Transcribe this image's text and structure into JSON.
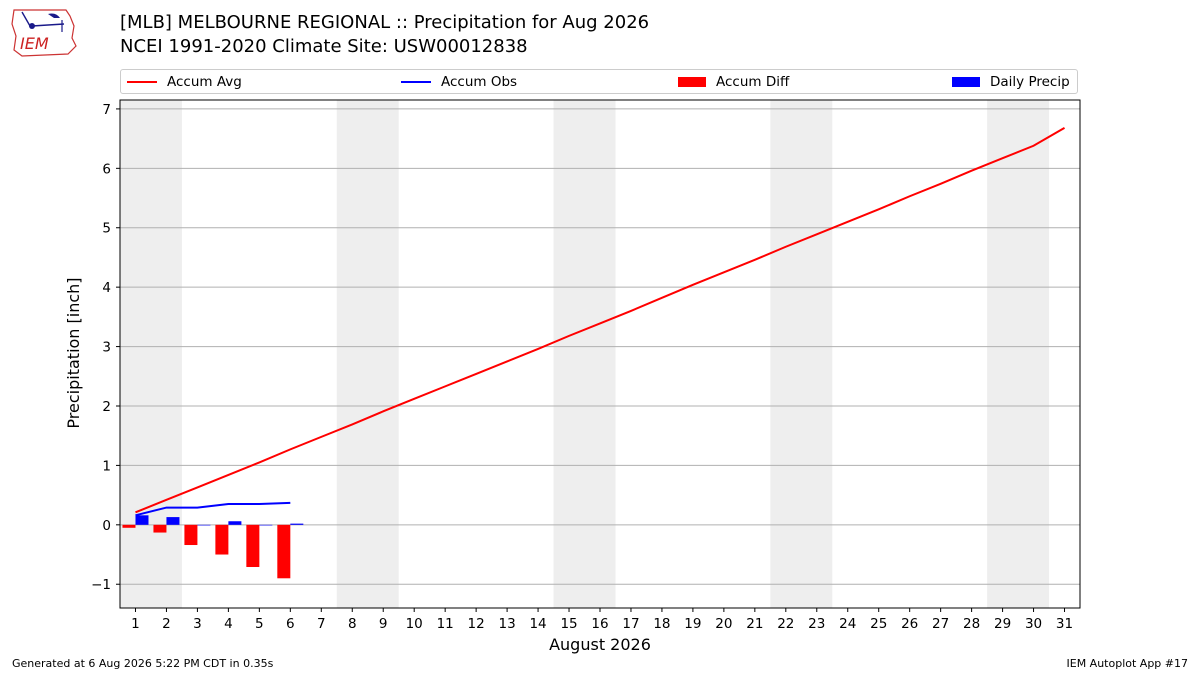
{
  "header": {
    "title_line1": "[MLB] MELBOURNE REGIONAL :: Precipitation for Aug 2026",
    "title_line2": "NCEI 1991-2020 Climate Site: USW00012838"
  },
  "logo": {
    "text": "IEM"
  },
  "footer": {
    "generated": "Generated at 6 Aug 2026 5:22 PM CDT in 0.35s",
    "app": "IEM Autoplot App #17"
  },
  "colors": {
    "accum_avg": "#ff0000",
    "accum_obs": "#0000ff",
    "accum_diff": "#ff0000",
    "daily_precip": "#0000ff",
    "weekend_shade": "#eeeeee",
    "grid": "#b0b0b0"
  },
  "chart_data": {
    "type": "line",
    "xlabel": "August 2026",
    "ylabel": "Precipitation [inch]",
    "x": [
      1,
      2,
      3,
      4,
      5,
      6,
      7,
      8,
      9,
      10,
      11,
      12,
      13,
      14,
      15,
      16,
      17,
      18,
      19,
      20,
      21,
      22,
      23,
      24,
      25,
      26,
      27,
      28,
      29,
      30,
      31
    ],
    "xlim": [
      0.5,
      31.5
    ],
    "ylim": [
      -1.4,
      7.15
    ],
    "yticks": [
      -1,
      0,
      1,
      2,
      3,
      4,
      5,
      6,
      7
    ],
    "ytick_labels": [
      "−1",
      "0",
      "1",
      "2",
      "3",
      "4",
      "5",
      "6",
      "7"
    ],
    "grid": "horizontal",
    "legend_placement": "top, above plot",
    "shaded_days": [
      [
        1,
        2
      ],
      [
        8,
        9
      ],
      [
        15,
        16
      ],
      [
        22,
        23
      ],
      [
        29,
        30
      ]
    ],
    "series": [
      {
        "name": "Accum Avg",
        "kind": "line",
        "color": "#ff0000",
        "values": [
          0.21,
          0.42,
          0.63,
          0.84,
          1.05,
          1.27,
          1.48,
          1.69,
          1.91,
          2.12,
          2.33,
          2.54,
          2.75,
          2.96,
          3.18,
          3.39,
          3.6,
          3.82,
          4.04,
          4.25,
          4.46,
          4.68,
          4.89,
          5.1,
          5.31,
          5.53,
          5.74,
          5.96,
          6.17,
          6.38,
          6.68
        ]
      },
      {
        "name": "Accum Obs",
        "kind": "line",
        "color": "#0000ff",
        "x": [
          1,
          2,
          3,
          4,
          5,
          6
        ],
        "values": [
          0.16,
          0.29,
          0.29,
          0.35,
          0.35,
          0.37
        ]
      },
      {
        "name": "Accum Diff",
        "kind": "bar",
        "color": "#ff0000",
        "x": [
          1,
          2,
          3,
          4,
          5,
          6
        ],
        "values": [
          -0.05,
          -0.13,
          -0.34,
          -0.5,
          -0.71,
          -0.9
        ]
      },
      {
        "name": "Daily Precip",
        "kind": "bar",
        "color": "#0000ff",
        "x": [
          1,
          2,
          3,
          4,
          5,
          6
        ],
        "values": [
          0.16,
          0.13,
          0.0,
          0.06,
          0.0,
          0.02
        ]
      }
    ]
  }
}
